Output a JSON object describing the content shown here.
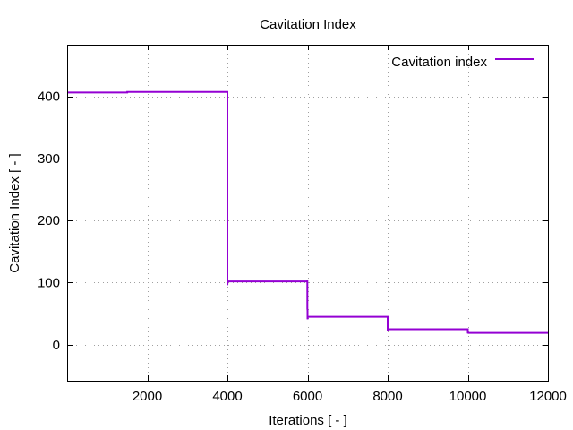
{
  "chart_data": {
    "type": "line",
    "title": "Cavitation Index",
    "xlabel": "Iterations [ - ]",
    "ylabel": "Cavitation Index [ - ]",
    "xlim": [
      0,
      12000
    ],
    "ylim": [
      -58,
      483
    ],
    "x_ticks": [
      2000,
      4000,
      6000,
      8000,
      10000,
      12000
    ],
    "y_ticks": [
      0,
      100,
      200,
      300,
      400
    ],
    "grid": true,
    "legend_position": "top-right",
    "series": [
      {
        "name": "Cavitation index",
        "color": "#9400d3",
        "x": [
          0,
          1500,
          1500,
          3990,
          4000,
          4000,
          4000,
          4005,
          4005,
          5990,
          5995,
          5995,
          6000,
          6000,
          6005,
          7990,
          8000,
          8000,
          8005,
          9990,
          10000,
          10000,
          10005,
          12000
        ],
        "y": [
          406,
          406,
          407,
          407,
          407,
          120,
          96,
          101,
          102,
          102,
          104,
          58,
          55,
          41,
          45,
          45,
          45,
          22,
          25,
          25,
          25,
          18,
          19,
          19
        ]
      }
    ]
  }
}
